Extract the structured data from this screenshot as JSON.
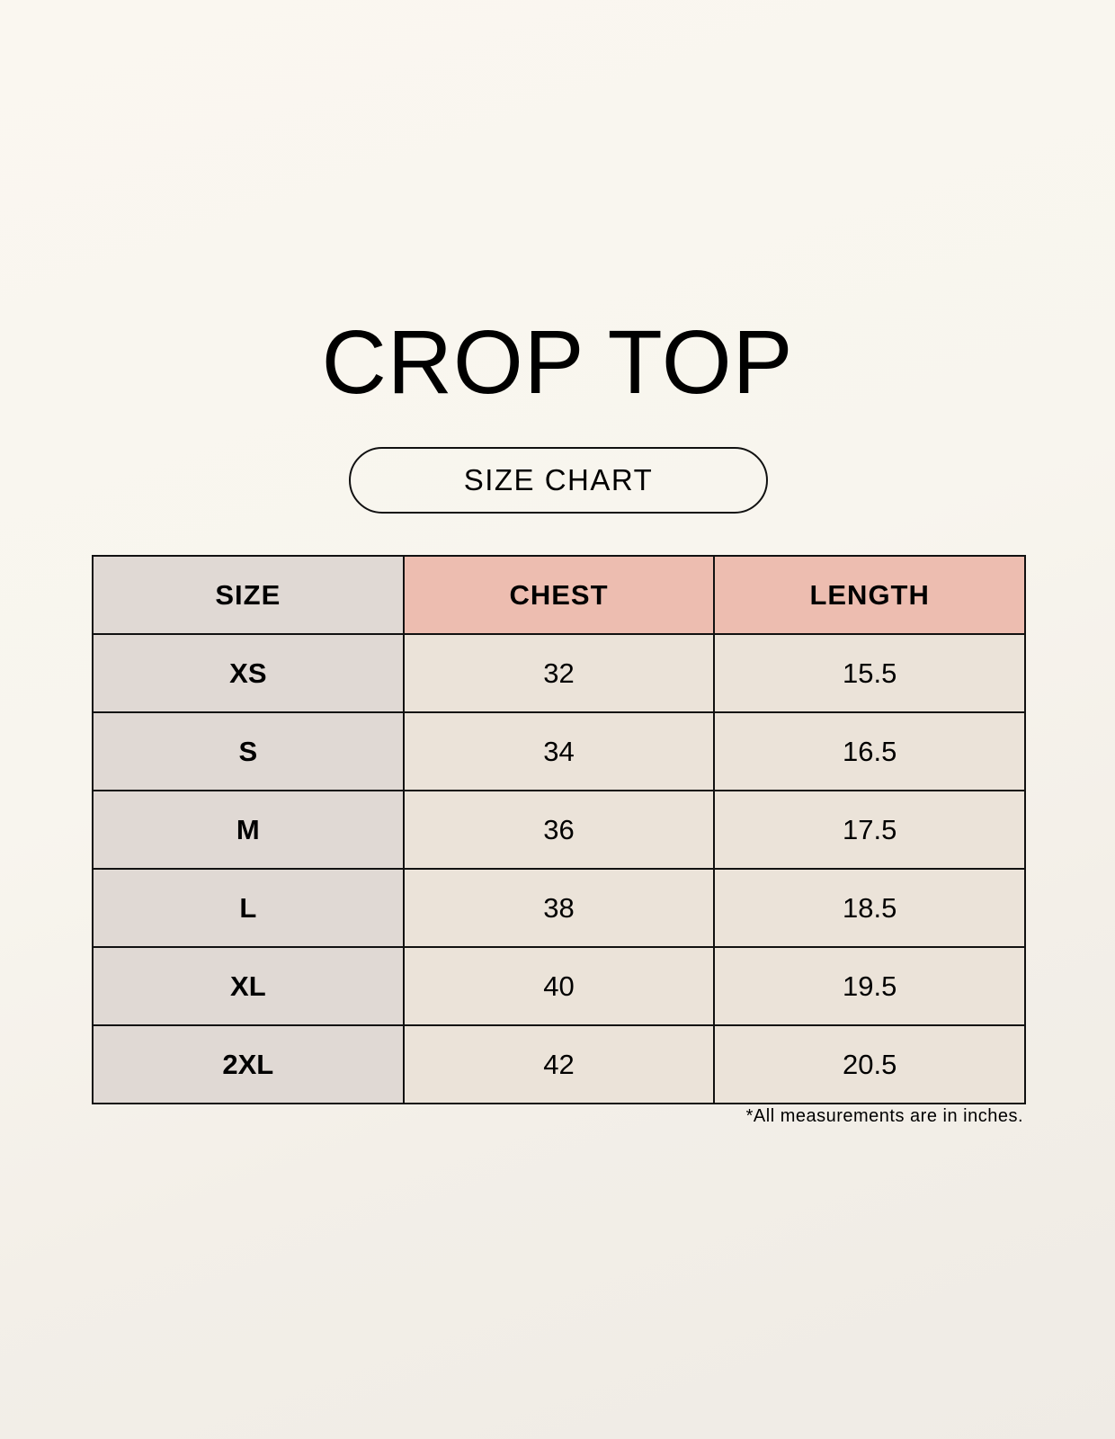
{
  "title": "CROP TOP",
  "subtitle": "SIZE CHART",
  "colors": {
    "size_column": "#e0d9d4",
    "measure_header": "#edbdb0",
    "value_cell": "#ebe3d9"
  },
  "table": {
    "headers": [
      "SIZE",
      "CHEST",
      "LENGTH"
    ],
    "rows": [
      [
        "XS",
        "32",
        "15.5"
      ],
      [
        "S",
        "34",
        "16.5"
      ],
      [
        "M",
        "36",
        "17.5"
      ],
      [
        "L",
        "38",
        "18.5"
      ],
      [
        "XL",
        "40",
        "19.5"
      ],
      [
        "2XL",
        "42",
        "20.5"
      ]
    ]
  },
  "footnote": "*All measurements are in inches."
}
